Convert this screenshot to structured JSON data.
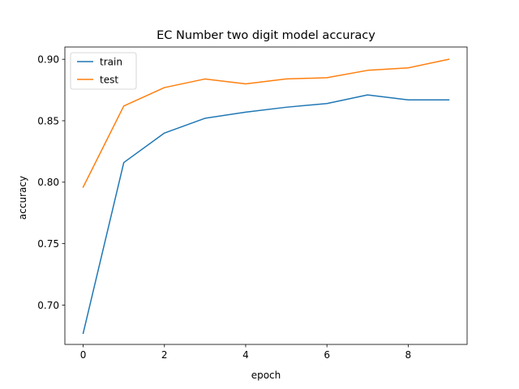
{
  "chart_data": {
    "type": "line",
    "title": "EC Number two digit model accuracy",
    "xlabel": "epoch",
    "ylabel": "accuracy",
    "x": [
      0,
      1,
      2,
      3,
      4,
      5,
      6,
      7,
      8,
      9
    ],
    "xlim": [
      -0.45,
      9.45
    ],
    "ylim": [
      0.668,
      0.91
    ],
    "xticks": [
      0,
      2,
      4,
      6,
      8
    ],
    "xtick_labels": [
      "0",
      "2",
      "4",
      "6",
      "8"
    ],
    "yticks": [
      0.7,
      0.75,
      0.8,
      0.85,
      0.9
    ],
    "ytick_labels": [
      "0.70",
      "0.75",
      "0.80",
      "0.85",
      "0.90"
    ],
    "grid": false,
    "legend_position": "top-left",
    "series": [
      {
        "name": "train",
        "color": "#1f77b4",
        "values": [
          0.677,
          0.816,
          0.84,
          0.852,
          0.857,
          0.861,
          0.864,
          0.871,
          0.867,
          0.867
        ]
      },
      {
        "name": "test",
        "color": "#ff7f0e",
        "values": [
          0.796,
          0.862,
          0.877,
          0.884,
          0.88,
          0.884,
          0.885,
          0.891,
          0.893,
          0.9
        ]
      }
    ]
  }
}
